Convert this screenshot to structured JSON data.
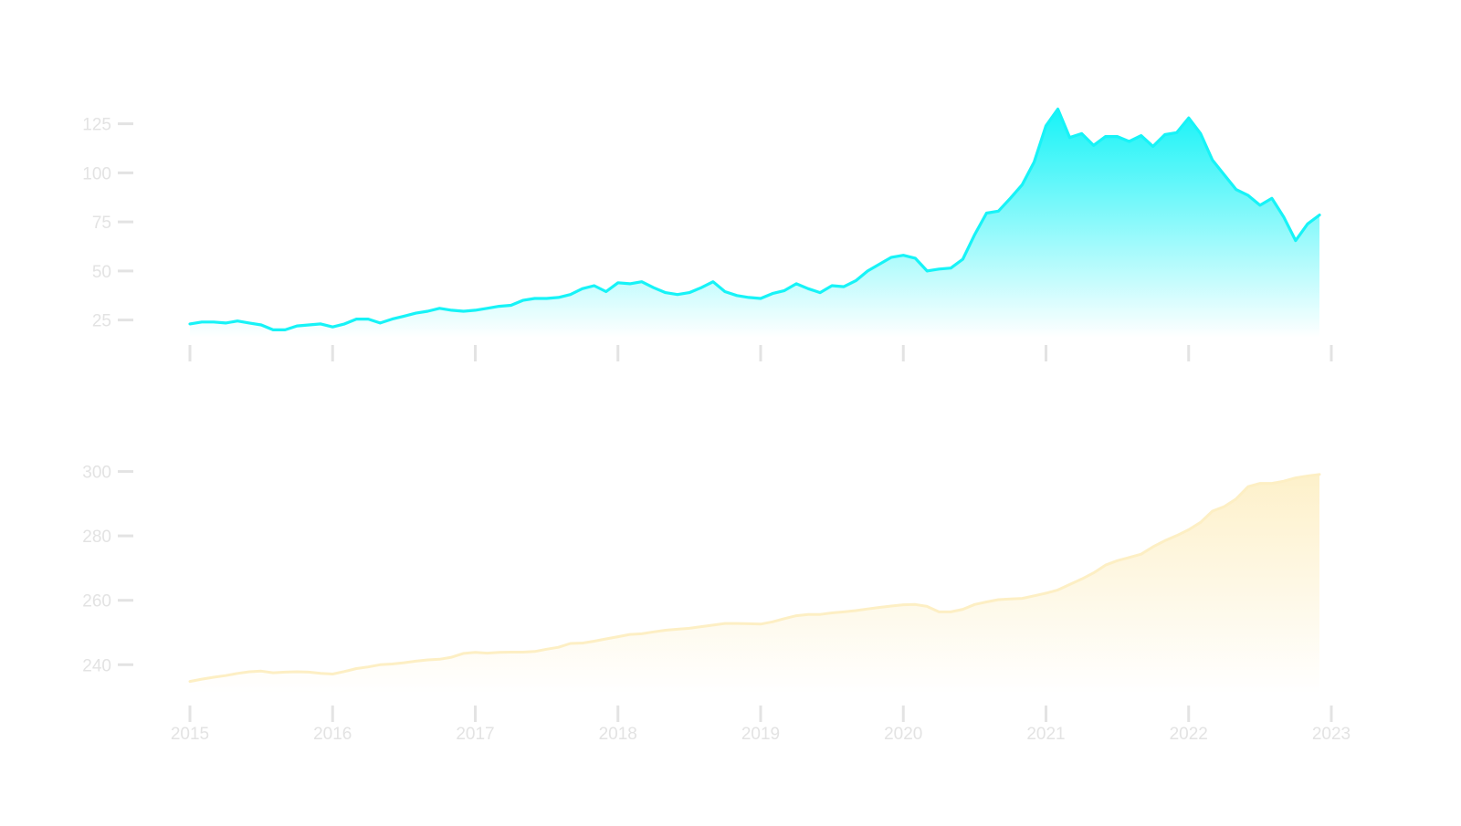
{
  "colors": {
    "background": "#ffffff",
    "axis": "#e3e3e3",
    "tick_label": "#e3e3e3",
    "top_series": "#17f3f7",
    "bottom_series": "#fdefc4"
  },
  "chart_data": [
    {
      "type": "area",
      "title": "",
      "xlabel": "",
      "ylabel": "",
      "x_tick_labels": [],
      "y_ticks": [
        25,
        50,
        75,
        100,
        125
      ],
      "y_tick_labels": [
        "25",
        "50",
        "75",
        "100",
        "125"
      ],
      "ylim": [
        16,
        136
      ],
      "xlim": [
        "2015-01",
        "2023-01"
      ],
      "grid": false,
      "fill": "vertical gradient from series color to white",
      "series": [
        {
          "x": [
            "2015-01",
            "2015-02",
            "2015-03",
            "2015-04",
            "2015-05",
            "2015-06",
            "2015-07",
            "2015-08",
            "2015-09",
            "2015-10",
            "2015-11",
            "2015-12",
            "2016-01",
            "2016-02",
            "2016-03",
            "2016-04",
            "2016-05",
            "2016-06",
            "2016-07",
            "2016-08",
            "2016-09",
            "2016-10",
            "2016-11",
            "2016-12",
            "2017-01",
            "2017-02",
            "2017-03",
            "2017-04",
            "2017-05",
            "2017-06",
            "2017-07",
            "2017-08",
            "2017-09",
            "2017-10",
            "2017-11",
            "2017-12",
            "2018-01",
            "2018-02",
            "2018-03",
            "2018-04",
            "2018-05",
            "2018-06",
            "2018-07",
            "2018-08",
            "2018-09",
            "2018-10",
            "2018-11",
            "2018-12",
            "2019-01",
            "2019-02",
            "2019-03",
            "2019-04",
            "2019-05",
            "2019-06",
            "2019-07",
            "2019-08",
            "2019-09",
            "2019-10",
            "2019-11",
            "2019-12",
            "2020-01",
            "2020-02",
            "2020-03",
            "2020-04",
            "2020-05",
            "2020-06",
            "2020-07",
            "2020-08",
            "2020-09",
            "2020-10",
            "2020-11",
            "2020-12",
            "2021-01",
            "2021-02",
            "2021-03",
            "2021-04",
            "2021-05",
            "2021-06",
            "2021-07",
            "2021-08",
            "2021-09",
            "2021-10",
            "2021-11",
            "2021-12",
            "2022-01",
            "2022-02",
            "2022-03",
            "2022-04",
            "2022-05",
            "2022-06",
            "2022-07",
            "2022-08",
            "2022-09",
            "2022-10",
            "2022-11",
            "2022-12"
          ],
          "values": [
            23,
            24,
            24,
            23.5,
            24.5,
            23.5,
            22.5,
            20,
            20,
            22,
            22.5,
            23,
            21.5,
            23,
            25.5,
            25.5,
            23.5,
            25.5,
            27,
            28.5,
            29.5,
            31,
            30,
            29.5,
            30,
            31,
            32,
            32.5,
            35,
            36,
            36,
            36.5,
            38,
            41,
            42.5,
            39.5,
            44,
            43.5,
            44.5,
            41.5,
            39,
            38,
            39,
            41.5,
            44.5,
            39.5,
            37.5,
            36.5,
            36,
            38.5,
            40,
            43.5,
            41,
            39,
            42.5,
            42,
            45,
            50,
            53.5,
            57,
            58,
            56.5,
            50,
            51,
            51.5,
            56,
            68.5,
            79.5,
            80.5,
            87,
            94,
            105.5,
            124,
            132.5,
            118,
            120,
            114,
            118.5,
            118.5,
            116,
            119,
            113.5,
            119.5,
            120.5,
            128,
            120,
            106.5,
            99,
            91.5,
            88.5,
            83.5,
            87,
            77.5,
            65.5,
            74,
            78.5
          ]
        }
      ]
    },
    {
      "type": "area",
      "title": "",
      "xlabel": "",
      "ylabel": "",
      "x_tick_labels": [
        "2015",
        "2016",
        "2017",
        "2018",
        "2019",
        "2020",
        "2021",
        "2022",
        "2023"
      ],
      "y_ticks": [
        240,
        260,
        280,
        300
      ],
      "y_tick_labels": [
        "240",
        "260",
        "280",
        "300"
      ],
      "ylim": [
        231,
        303
      ],
      "xlim": [
        "2015-01",
        "2023-01"
      ],
      "grid": false,
      "fill": "vertical gradient from series color to white",
      "series": [
        {
          "x": [
            "2015-01",
            "2015-02",
            "2015-03",
            "2015-04",
            "2015-05",
            "2015-06",
            "2015-07",
            "2015-08",
            "2015-09",
            "2015-10",
            "2015-11",
            "2015-12",
            "2016-01",
            "2016-02",
            "2016-03",
            "2016-04",
            "2016-05",
            "2016-06",
            "2016-07",
            "2016-08",
            "2016-09",
            "2016-10",
            "2016-11",
            "2016-12",
            "2017-01",
            "2017-02",
            "2017-03",
            "2017-04",
            "2017-05",
            "2017-06",
            "2017-07",
            "2017-08",
            "2017-09",
            "2017-10",
            "2017-11",
            "2017-12",
            "2018-01",
            "2018-02",
            "2018-03",
            "2018-04",
            "2018-05",
            "2018-06",
            "2018-07",
            "2018-08",
            "2018-09",
            "2018-10",
            "2018-11",
            "2018-12",
            "2019-01",
            "2019-02",
            "2019-03",
            "2019-04",
            "2019-05",
            "2019-06",
            "2019-07",
            "2019-08",
            "2019-09",
            "2019-10",
            "2019-11",
            "2019-12",
            "2020-01",
            "2020-02",
            "2020-03",
            "2020-04",
            "2020-05",
            "2020-06",
            "2020-07",
            "2020-08",
            "2020-09",
            "2020-10",
            "2020-11",
            "2020-12",
            "2021-01",
            "2021-02",
            "2021-03",
            "2021-04",
            "2021-05",
            "2021-06",
            "2021-07",
            "2021-08",
            "2021-09",
            "2021-10",
            "2021-11",
            "2021-12",
            "2022-01",
            "2022-02",
            "2022-03",
            "2022-04",
            "2022-05",
            "2022-06",
            "2022-07",
            "2022-08",
            "2022-09",
            "2022-10",
            "2022-11",
            "2022-12"
          ],
          "values": [
            234.8,
            235.5,
            236.1,
            236.6,
            237.3,
            237.8,
            238.0,
            237.5,
            237.7,
            237.8,
            237.7,
            237.3,
            237.1,
            237.9,
            238.8,
            239.3,
            240.0,
            240.2,
            240.6,
            241.1,
            241.5,
            241.7,
            242.3,
            243.5,
            243.8,
            243.6,
            243.8,
            243.9,
            243.9,
            244.1,
            244.8,
            245.4,
            246.6,
            246.7,
            247.3,
            248.0,
            248.7,
            249.4,
            249.6,
            250.2,
            250.7,
            251.0,
            251.3,
            251.8,
            252.3,
            252.8,
            252.8,
            252.7,
            252.6,
            253.3,
            254.3,
            255.2,
            255.6,
            255.6,
            256.1,
            256.4,
            256.8,
            257.3,
            257.8,
            258.2,
            258.6,
            258.7,
            258.1,
            256.4,
            256.4,
            257.2,
            258.7,
            259.5,
            260.2,
            260.4,
            260.6,
            261.4,
            262.2,
            263.2,
            264.9,
            266.6,
            268.5,
            270.9,
            272.3,
            273.3,
            274.3,
            276.6,
            278.5,
            280.1,
            281.9,
            284.2,
            287.7,
            289.1,
            291.5,
            295.3,
            296.3,
            296.3,
            297.0,
            298.0,
            298.6,
            299.1
          ]
        }
      ]
    }
  ]
}
